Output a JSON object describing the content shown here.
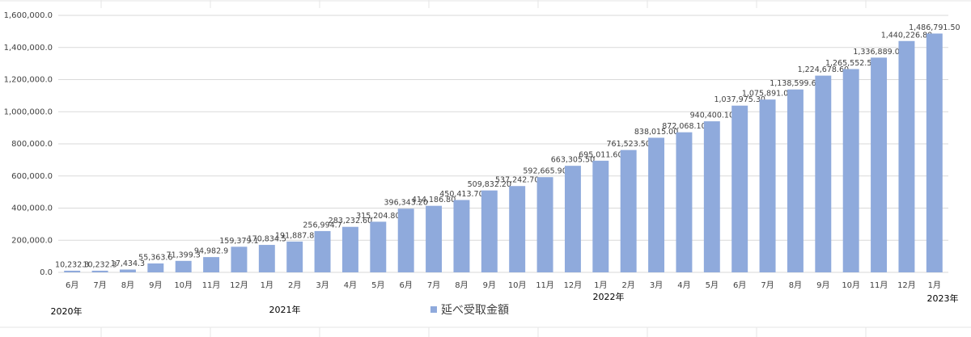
{
  "chart_data": {
    "type": "bar",
    "categories": [
      "6月",
      "7月",
      "8月",
      "9月",
      "10月",
      "11月",
      "12月",
      "1月",
      "2月",
      "3月",
      "4月",
      "5月",
      "6月",
      "7月",
      "8月",
      "9月",
      "10月",
      "11月",
      "12月",
      "1月",
      "2月",
      "3月",
      "4月",
      "5月",
      "6月",
      "7月",
      "8月",
      "9月",
      "10月",
      "11月",
      "12月",
      "1月"
    ],
    "series": [
      {
        "name": "延べ受取金額",
        "color": "#8faadc",
        "values": [
          10232.3,
          10232.3,
          17434.3,
          55363.6,
          71399.3,
          94982.9,
          159379.1,
          170834.5,
          191887.8,
          256994.7,
          283232.6,
          315204.8,
          396343.2,
          414186.8,
          450413.7,
          509832.2,
          537242.7,
          592665.9,
          663305.5,
          695011.6,
          761523.5,
          838015.0,
          872068.1,
          940400.1,
          1037975.3,
          1075891.0,
          1138599.6,
          1224678.6,
          1265552.5,
          1336889.0,
          1440226.8,
          1486791.5
        ],
        "value_labels": [
          "10,232.3",
          "10,232.3",
          "17,434.3",
          "55,363.6",
          "71,399.3",
          "94,982.9",
          "159,379.1",
          "170,834.5",
          "191,887.8",
          "256,994.7",
          "283,232.60",
          "315,204.80",
          "396,343.20",
          "414,186.80",
          "450,413.70",
          "509,832.20",
          "537,242.70",
          "592,665.90",
          "663,305.50",
          "695,011.60",
          "761,523.50",
          "838,015.00",
          "872,068.10",
          "940,400.10",
          "1,037,975.30",
          "1,075,891.00",
          "1,138,599.60",
          "1,224,678.60",
          "1,265,552.50",
          "1,336,889.00",
          "1,440,226.80",
          "1,486,791.50"
        ]
      }
    ],
    "ylim": [
      0,
      1600000
    ],
    "yticks": [
      {
        "value": 0,
        "label": "0.0"
      },
      {
        "value": 200000,
        "label": "200,000.0"
      },
      {
        "value": 400000,
        "label": "400,000.0"
      },
      {
        "value": 600000,
        "label": "600,000.0"
      },
      {
        "value": 800000,
        "label": "800,000.0"
      },
      {
        "value": 1000000,
        "label": "1,000,000.0"
      },
      {
        "value": 1200000,
        "label": "1,200,000.0"
      },
      {
        "value": 1400000,
        "label": "1,400,000.0"
      },
      {
        "value": 1600000,
        "label": "1,600,000.0"
      }
    ],
    "grid": true,
    "annotations": [
      "2020年",
      "2021年",
      "2022年",
      "2023年"
    ]
  }
}
